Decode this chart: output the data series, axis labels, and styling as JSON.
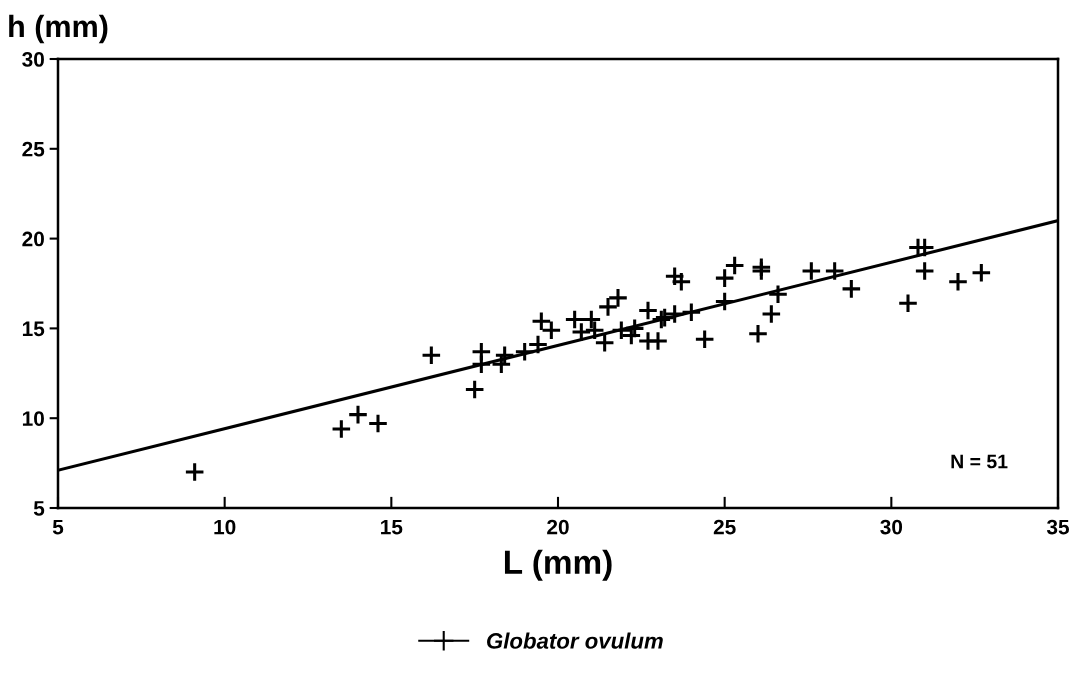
{
  "chart_data": {
    "type": "scatter",
    "xlabel": "L (mm)",
    "ylabel": "h (mm)",
    "xlim": [
      5,
      35
    ],
    "ylim": [
      5,
      30
    ],
    "xticks": [
      5,
      10,
      15,
      20,
      25,
      30,
      35
    ],
    "yticks": [
      5,
      10,
      15,
      20,
      25,
      30
    ],
    "grid": false,
    "legend": "bottom",
    "annotations": [
      "N = 51"
    ],
    "series": [
      {
        "name": "Globator ovulum",
        "color": "#000000",
        "marker": "cross",
        "x": [
          9.1,
          13.5,
          14.0,
          14.6,
          16.2,
          17.5,
          17.7,
          17.7,
          18.3,
          18.4,
          19.0,
          19.4,
          19.5,
          19.8,
          20.5,
          20.7,
          21.0,
          21.1,
          21.4,
          21.5,
          21.8,
          21.9,
          22.2,
          22.3,
          22.7,
          22.7,
          23.0,
          23.1,
          23.2,
          23.5,
          23.5,
          23.7,
          24.0,
          24.4,
          25.0,
          25.0,
          25.3,
          26.0,
          26.1,
          26.1,
          26.4,
          26.6,
          27.6,
          28.3,
          28.8,
          30.5,
          30.8,
          31.0,
          31.0,
          32.0,
          32.7
        ],
        "values": [
          7.0,
          9.4,
          10.2,
          9.7,
          13.5,
          11.6,
          13.7,
          13.0,
          13.0,
          13.5,
          13.7,
          14.1,
          15.4,
          14.9,
          15.5,
          14.8,
          15.5,
          14.9,
          14.2,
          16.2,
          16.7,
          14.9,
          14.6,
          15.0,
          16.0,
          14.3,
          14.3,
          15.5,
          15.6,
          15.8,
          17.9,
          17.6,
          15.9,
          14.4,
          17.8,
          16.5,
          18.5,
          14.7,
          18.4,
          18.2,
          15.8,
          16.9,
          18.2,
          18.2,
          17.2,
          16.4,
          19.5,
          19.5,
          18.2,
          17.6,
          18.1
        ]
      },
      {
        "type": "line",
        "color": "#000000",
        "marker": "none",
        "x": [
          5,
          35
        ],
        "values": [
          7.1,
          21.0
        ]
      }
    ]
  }
}
